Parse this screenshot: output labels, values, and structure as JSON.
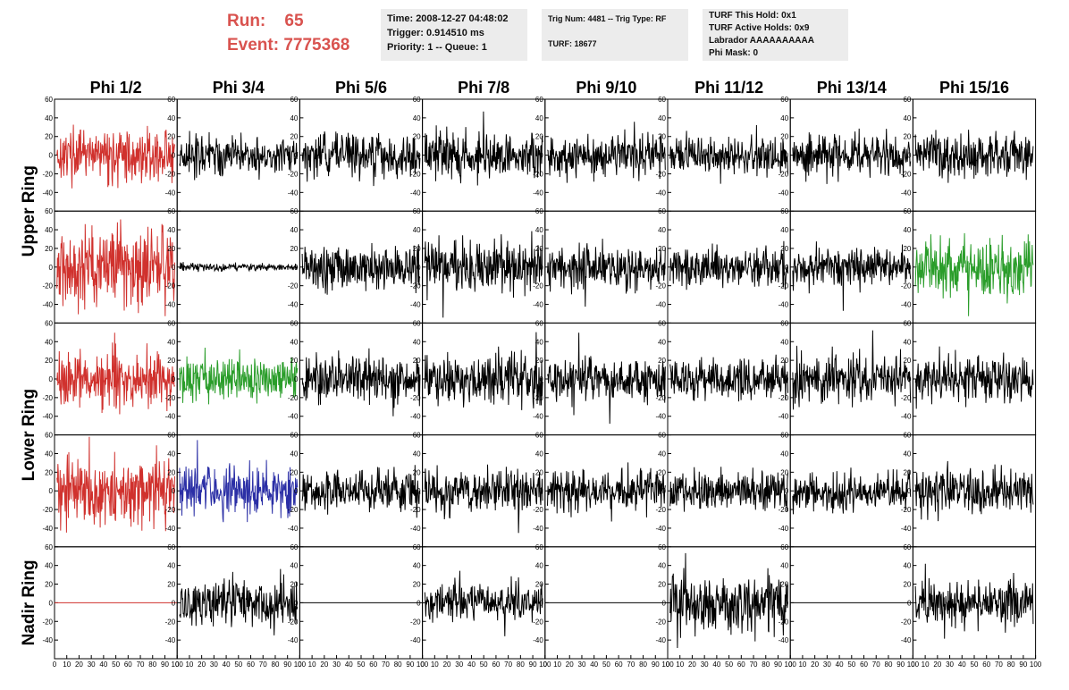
{
  "header": {
    "run_label": "Run:",
    "run_value": "65",
    "event_label": "Event:",
    "event_value": "7775368",
    "time": "Time: 2008-12-27 04:48:02",
    "trigger": "Trigger: 0.914510 ms",
    "priority": "Priority: 1 -- Queue: 1",
    "trig_num": "Trig Num: 4481 -- Trig Type: RF",
    "turf": "TURF: 18677",
    "turf_this_hold": "TURF This Hold: 0x1",
    "turf_active_holds": "TURF Active Holds: 0x9",
    "labrador": "Labrador AAAAAAAAAA",
    "phi_mask": "Phi Mask: 0"
  },
  "colors": {
    "accent": "#d9534f",
    "box": "#ececec"
  },
  "chart_data": {
    "type": "line",
    "columns": [
      "Phi 1/2",
      "Phi 3/4",
      "Phi 5/6",
      "Phi 7/8",
      "Phi 9/10",
      "Phi 11/12",
      "Phi 13/14",
      "Phi 15/16"
    ],
    "rows": [
      "Upper Ring",
      "Lower Ring",
      "Nadir Ring"
    ],
    "xlim": [
      0,
      100
    ],
    "ylim": [
      -60,
      60
    ],
    "xticks": [
      0,
      10,
      20,
      30,
      40,
      50,
      60,
      70,
      80,
      90,
      100
    ],
    "yticks": [
      -40,
      -20,
      0,
      20,
      40,
      60
    ],
    "panels": [
      {
        "color": "#d0312d",
        "amp": 13,
        "flat": false
      },
      {
        "color": "#000000",
        "amp": 11,
        "flat": false
      },
      {
        "color": "#000000",
        "amp": 11,
        "flat": false
      },
      {
        "color": "#000000",
        "amp": 12,
        "flat": false
      },
      {
        "color": "#000000",
        "amp": 11,
        "flat": false
      },
      {
        "color": "#000000",
        "amp": 10,
        "flat": false
      },
      {
        "color": "#000000",
        "amp": 11,
        "flat": false
      },
      {
        "color": "#000000",
        "amp": 12,
        "flat": false
      },
      {
        "color": "#d0312d",
        "amp": 22,
        "flat": false
      },
      {
        "color": "#000000",
        "amp": 2,
        "flat": false
      },
      {
        "color": "#000000",
        "amp": 12,
        "flat": false
      },
      {
        "color": "#000000",
        "amp": 14,
        "flat": false
      },
      {
        "color": "#000000",
        "amp": 11,
        "flat": false
      },
      {
        "color": "#000000",
        "amp": 10,
        "flat": false
      },
      {
        "color": "#000000",
        "amp": 10,
        "flat": false
      },
      {
        "color": "#2a9d2a",
        "amp": 16,
        "flat": false
      },
      {
        "color": "#d0312d",
        "amp": 15,
        "flat": false
      },
      {
        "color": "#2a9d2a",
        "amp": 12,
        "flat": false
      },
      {
        "color": "#000000",
        "amp": 12,
        "flat": false
      },
      {
        "color": "#000000",
        "amp": 13,
        "flat": false
      },
      {
        "color": "#000000",
        "amp": 11,
        "flat": false
      },
      {
        "color": "#000000",
        "amp": 11,
        "flat": false
      },
      {
        "color": "#000000",
        "amp": 13,
        "flat": false
      },
      {
        "color": "#000000",
        "amp": 12,
        "flat": false
      },
      {
        "color": "#d0312d",
        "amp": 18,
        "flat": false
      },
      {
        "color": "#2b2fa6",
        "amp": 13,
        "flat": false
      },
      {
        "color": "#000000",
        "amp": 11,
        "flat": false
      },
      {
        "color": "#000000",
        "amp": 12,
        "flat": false
      },
      {
        "color": "#000000",
        "amp": 11,
        "flat": false
      },
      {
        "color": "#000000",
        "amp": 10,
        "flat": false
      },
      {
        "color": "#000000",
        "amp": 10,
        "flat": false
      },
      {
        "color": "#000000",
        "amp": 12,
        "flat": false
      },
      {
        "color": "#d0312d",
        "amp": 0,
        "flat": true
      },
      {
        "color": "#000000",
        "amp": 12,
        "flat": false
      },
      {
        "color": "#000000",
        "amp": 0,
        "flat": true
      },
      {
        "color": "#000000",
        "amp": 11,
        "flat": false
      },
      {
        "color": "#000000",
        "amp": 0,
        "flat": true
      },
      {
        "color": "#000000",
        "amp": 15,
        "flat": false
      },
      {
        "color": "#000000",
        "amp": 0,
        "flat": true
      },
      {
        "color": "#000000",
        "amp": 12,
        "flat": false
      }
    ]
  }
}
